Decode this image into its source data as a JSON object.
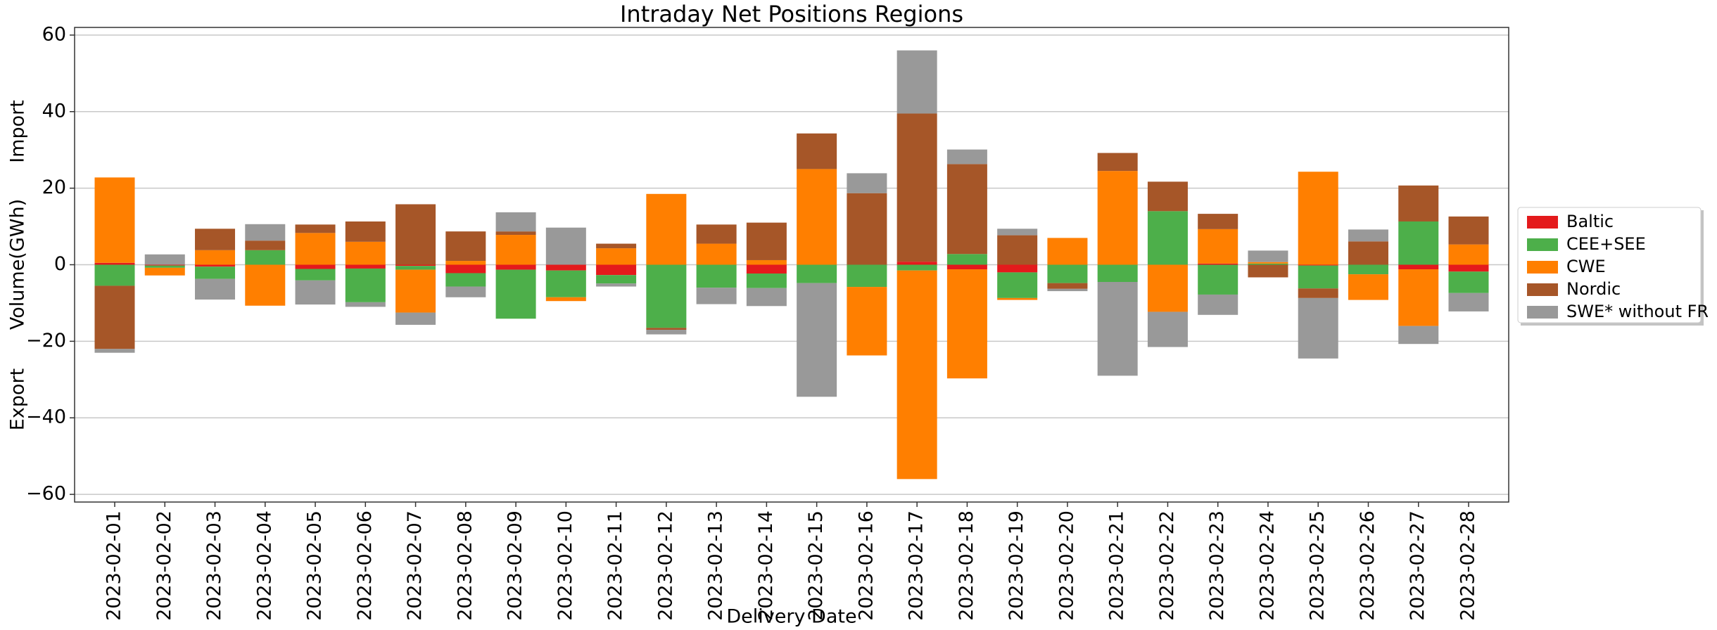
{
  "chart_data": {
    "type": "bar",
    "stacked": true,
    "title": "Intraday Net Positions Regions",
    "x_label": "Delivery Date",
    "y_label": "Volume(GWh)",
    "y_label_top": "Import",
    "y_label_bottom": "Export",
    "categories": [
      "2023-02-01",
      "2023-02-02",
      "2023-02-03",
      "2023-02-04",
      "2023-02-05",
      "2023-02-06",
      "2023-02-07",
      "2023-02-08",
      "2023-02-09",
      "2023-02-10",
      "2023-02-11",
      "2023-02-12",
      "2023-02-13",
      "2023-02-14",
      "2023-02-15",
      "2023-02-16",
      "2023-02-17",
      "2023-02-18",
      "2023-02-19",
      "2023-02-20",
      "2023-02-21",
      "2023-02-22",
      "2023-02-23",
      "2023-02-24",
      "2023-02-25",
      "2023-02-26",
      "2023-02-27",
      "2023-02-28"
    ],
    "series": [
      {
        "name": "Baltic",
        "color": "#e41a1c",
        "values": [
          0.5,
          -0.2,
          -0.5,
          0,
          -1.1,
          -1,
          -0.3,
          -2.2,
          -1.3,
          -1.5,
          -2.7,
          0,
          0,
          -2.3,
          0,
          0,
          0.8,
          -1.2,
          -2,
          0,
          0,
          0,
          0.3,
          0,
          -0.2,
          0,
          -1.2,
          -1.8
        ]
      },
      {
        "name": "CEE+SEE",
        "color": "#4daf4a",
        "values": [
          -5.5,
          -0.6,
          -3.2,
          3.8,
          -3,
          -8.8,
          -1,
          -3.5,
          -12.8,
          -7,
          -2.2,
          -16.5,
          -6,
          -3.8,
          -4.8,
          -5.8,
          -1.5,
          2.8,
          -6.7,
          -4.8,
          -4.5,
          14,
          -7.8,
          0.3,
          -6,
          -2.5,
          11.3,
          -5.6
        ]
      },
      {
        "name": "CWE",
        "color": "#ff7f00",
        "values": [
          22.3,
          -2,
          3.8,
          -10.7,
          8.3,
          6,
          -11.2,
          1,
          7.8,
          -1,
          4.3,
          18.5,
          5.5,
          1.2,
          25,
          -17.9,
          -54.5,
          -28.5,
          -0.5,
          7,
          24.5,
          -12.3,
          9,
          0.4,
          24.3,
          -6.7,
          -14.8,
          5.3
        ]
      },
      {
        "name": "Nordic",
        "color": "#a65628",
        "values": [
          -16.5,
          0,
          5.6,
          2.5,
          2.2,
          5.3,
          15.8,
          7.7,
          0.9,
          0,
          1.2,
          -0.5,
          5,
          9.8,
          9.3,
          18.7,
          38.7,
          23.5,
          7.7,
          -1.5,
          4.7,
          7.7,
          4,
          -3.3,
          -2.5,
          6.1,
          9.4,
          7.3
        ]
      },
      {
        "name": "SWE* without FR",
        "color": "#999999",
        "values": [
          -1,
          2.7,
          -5.4,
          4.3,
          -6.3,
          -1.2,
          -3.2,
          -2.8,
          5,
          9.7,
          -0.8,
          -1.2,
          -4.3,
          -4.7,
          -29.7,
          5.2,
          16.5,
          3.8,
          1.7,
          -0.6,
          -24.5,
          -9.2,
          -5.3,
          3,
          -15.8,
          3.1,
          -4.7,
          -4.8
        ]
      }
    ],
    "ylim": [
      -62,
      62
    ],
    "yticks": [
      {
        "value": -60,
        "label": "−60"
      },
      {
        "value": -40,
        "label": "−40"
      },
      {
        "value": -20,
        "label": "−20"
      },
      0,
      20,
      40,
      60
    ],
    "grid": true,
    "legend": "right"
  }
}
